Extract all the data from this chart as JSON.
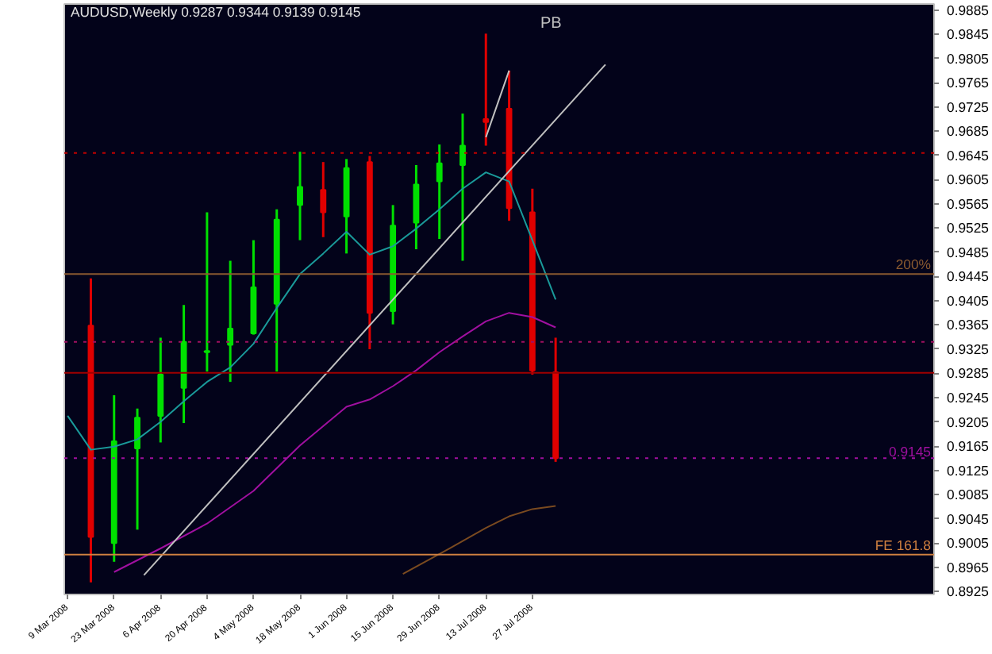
{
  "chart_data": {
    "type": "candlestick",
    "title": "AUDUSD,Weekly  0.9287 0.9344 0.9139 0.9145",
    "x": [
      "2008-03-16",
      "2008-03-23",
      "2008-03-30",
      "2008-04-06",
      "2008-04-13",
      "2008-04-20",
      "2008-04-27",
      "2008-05-04",
      "2008-05-11",
      "2008-05-18",
      "2008-05-25",
      "2008-06-01",
      "2008-06-08",
      "2008-06-15",
      "2008-06-22",
      "2008-06-29",
      "2008-07-06",
      "2008-07-13",
      "2008-07-20",
      "2008-07-27",
      "2008-08-03"
    ],
    "ohlc": [
      [
        0.9364,
        0.9442,
        0.894,
        0.9015
      ],
      [
        0.9005,
        0.9249,
        0.8974,
        0.9173
      ],
      [
        0.9161,
        0.9227,
        0.9027,
        0.9212
      ],
      [
        0.9215,
        0.9344,
        0.9171,
        0.9283
      ],
      [
        0.9261,
        0.9398,
        0.9203,
        0.9337
      ],
      [
        0.932,
        0.9551,
        0.9288,
        0.9322
      ],
      [
        0.9332,
        0.9471,
        0.9271,
        0.9359
      ],
      [
        0.9351,
        0.9505,
        0.9349,
        0.9427
      ],
      [
        0.94,
        0.9556,
        0.9288,
        0.9539
      ],
      [
        0.9563,
        0.9651,
        0.9505,
        0.9593
      ],
      [
        0.9588,
        0.9634,
        0.951,
        0.9551
      ],
      [
        0.9544,
        0.9639,
        0.9483,
        0.9624
      ],
      [
        0.9634,
        0.9644,
        0.9325,
        0.9385
      ],
      [
        0.9388,
        0.9563,
        0.9366,
        0.9529
      ],
      [
        0.9534,
        0.9629,
        0.949,
        0.9597
      ],
      [
        0.9602,
        0.9663,
        0.9507,
        0.9632
      ],
      [
        0.9629,
        0.9714,
        0.9471,
        0.9661
      ],
      [
        0.9705,
        0.9846,
        0.9661,
        0.97
      ],
      [
        0.9722,
        0.9785,
        0.9537,
        0.9558
      ],
      [
        0.9551,
        0.959,
        0.9283,
        0.929
      ],
      [
        0.9287,
        0.9344,
        0.9139,
        0.9145
      ]
    ],
    "colors": [
      "#e00000",
      "#00e000",
      "#00e000",
      "#00e000",
      "#00e000",
      "#00e000",
      "#00e000",
      "#00e000",
      "#00e000",
      "#00e000",
      "#e00000",
      "#00e000",
      "#e00000",
      "#00e000",
      "#00e000",
      "#00e000",
      "#00e000",
      "#e00000",
      "#e00000",
      "#e00000",
      "#e00000"
    ],
    "series": [
      {
        "type": "line",
        "color": "#1a9a9a",
        "x": [
          "2008-03-09",
          "2008-03-16",
          "2008-03-23",
          "2008-03-30",
          "2008-04-06",
          "2008-04-13",
          "2008-04-20",
          "2008-04-27",
          "2008-05-04",
          "2008-05-11",
          "2008-05-18",
          "2008-05-25",
          "2008-06-01",
          "2008-06-08",
          "2008-06-15",
          "2008-06-22",
          "2008-06-29",
          "2008-07-06",
          "2008-07-13",
          "2008-07-20",
          "2008-07-27",
          "2008-08-03"
        ],
        "values": [
          0.9215,
          0.9159,
          0.9164,
          0.9176,
          0.9205,
          0.9239,
          0.9271,
          0.9295,
          0.9334,
          0.9393,
          0.9449,
          0.9483,
          0.9519,
          0.9481,
          0.9495,
          0.9524,
          0.9556,
          0.959,
          0.9617,
          0.9602,
          0.9505,
          0.9407
        ]
      },
      {
        "type": "line",
        "color": "#a010a0",
        "x": [
          "2008-03-23",
          "2008-04-06",
          "2008-04-20",
          "2008-05-04",
          "2008-05-18",
          "2008-06-01",
          "2008-06-08",
          "2008-06-15",
          "2008-06-22",
          "2008-06-29",
          "2008-07-06",
          "2008-07-13",
          "2008-07-20",
          "2008-07-27",
          "2008-08-03"
        ],
        "values": [
          0.8957,
          0.8996,
          0.9037,
          0.9091,
          0.9166,
          0.923,
          0.9242,
          0.9264,
          0.929,
          0.932,
          0.9346,
          0.9371,
          0.9385,
          0.9378,
          0.9361
        ]
      },
      {
        "type": "line",
        "color": "#7a4a20",
        "x": [
          "2008-06-18",
          "2008-07-02",
          "2008-07-13",
          "2008-07-20",
          "2008-07-27",
          "2008-08-03"
        ],
        "values": [
          0.8954,
          0.8996,
          0.903,
          0.9049,
          0.9061,
          0.9066
        ]
      },
      {
        "type": "line",
        "color": "#c0c0c0",
        "x": [
          "2008-04-01",
          "2008-08-18"
        ],
        "values": [
          0.8952,
          0.9795
        ]
      },
      {
        "type": "line",
        "color": "#c0c0c0",
        "x": [
          "2008-07-13",
          "2008-07-20"
        ],
        "values": [
          0.9675,
          0.9785
        ]
      }
    ],
    "ref_lines": [
      {
        "axis": "y",
        "value": 0.9649,
        "label": null,
        "color": "#c00000",
        "line_style": "dotted"
      },
      {
        "axis": "y",
        "value": 0.9449,
        "label": null,
        "color": "#8a5a30",
        "line_style": "solid"
      },
      {
        "axis": "y",
        "value": 0.9337,
        "label": null,
        "color": "#a01060",
        "line_style": "dotted"
      },
      {
        "axis": "y",
        "value": 0.9286,
        "label": null,
        "color": "#a00000",
        "line_style": "solid"
      },
      {
        "axis": "y",
        "value": 0.9145,
        "label": "0.9145",
        "color": "#a010a0",
        "line_style": "dotted"
      },
      {
        "axis": "y",
        "value": 0.8986,
        "label": "FE 161.8",
        "color": "#d08040",
        "line_style": "solid"
      }
    ],
    "annotations": [
      "PB",
      {
        "text": "200%",
        "y": 0.9449
      }
    ],
    "xlim": [
      "2008-03-08",
      "2008-11-25"
    ],
    "xticks": [
      {
        "value": "2008-03-09",
        "label": "9 Mar 2008"
      },
      {
        "value": "2008-03-23",
        "label": "23 Mar 2008"
      },
      {
        "value": "2008-04-06",
        "label": "6 Apr 2008"
      },
      {
        "value": "2008-04-20",
        "label": "20 Apr 2008"
      },
      {
        "value": "2008-05-04",
        "label": "4 May 2008"
      },
      {
        "value": "2008-05-18",
        "label": "18 May 2008"
      },
      {
        "value": "2008-06-01",
        "label": "1 Jun 2008"
      },
      {
        "value": "2008-06-15",
        "label": "15 Jun 2008"
      },
      {
        "value": "2008-06-29",
        "label": "29 Jun 2008"
      },
      {
        "value": "2008-07-13",
        "label": "13 Jul 2008"
      },
      {
        "value": "2008-07-27",
        "label": "27 Jul 2008"
      }
    ],
    "ylim": [
      0.892,
      0.9895
    ],
    "yticks": [
      0.8925,
      0.8965,
      0.9005,
      0.9045,
      0.9085,
      0.9125,
      0.9165,
      0.9205,
      0.9245,
      0.9285,
      0.9325,
      0.9365,
      0.9405,
      0.9445,
      0.9485,
      0.9525,
      0.9565,
      0.9605,
      0.9645,
      0.9685,
      0.9725,
      0.9765,
      0.9805,
      0.9845,
      0.9885
    ]
  }
}
